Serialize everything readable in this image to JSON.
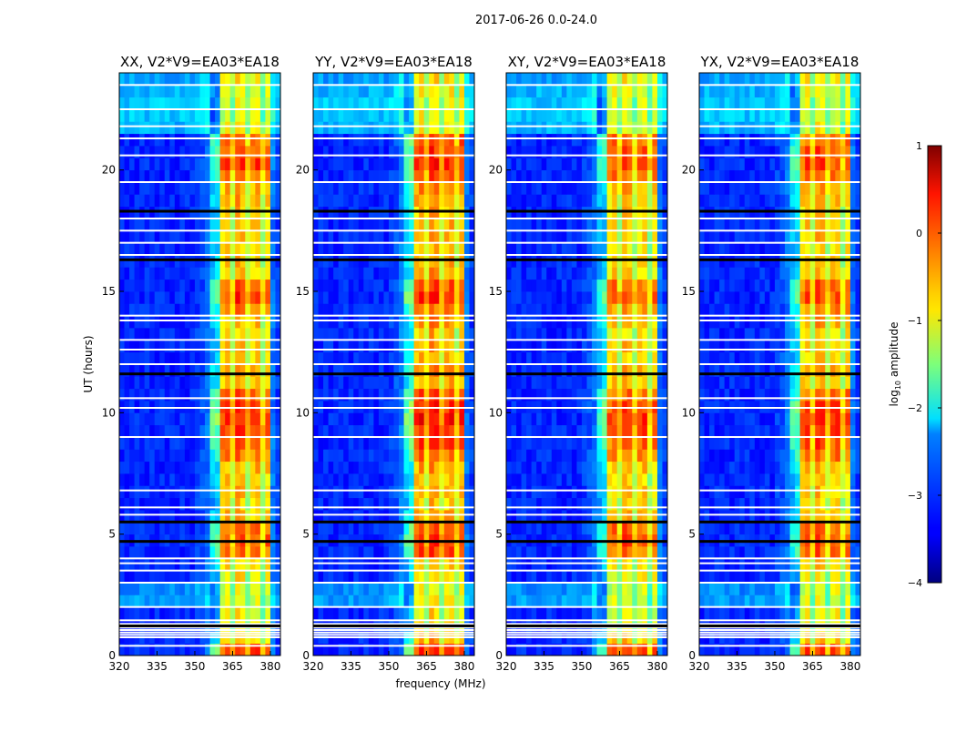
{
  "chart_data": {
    "type": "heatmap",
    "suptitle": "2017-06-26 0.0-24.0",
    "xlabel": "frequency (MHz)",
    "ylabel": "UT (hours)",
    "xlim": [
      320,
      384
    ],
    "ylim": [
      0,
      24
    ],
    "xticks": [
      320,
      335,
      350,
      365,
      380
    ],
    "yticks": [
      0,
      5,
      10,
      15,
      20
    ],
    "colorbar": {
      "label_main": "log",
      "label_sub": "10",
      "label_rest": " amplitude",
      "vmin": -4,
      "vmax": 1,
      "ticks": [
        1,
        0,
        -1,
        -2,
        -3,
        -4
      ],
      "tick_labels": [
        "1",
        "0",
        "−1",
        "−2",
        "−3",
        "−4"
      ],
      "colormap": "jet"
    },
    "freq_bin_mhz": 2,
    "time_bin_hours": 0.5,
    "freq_profile": [
      -3.2,
      -3.2,
      -3.2,
      -3.2,
      -3.2,
      -3.2,
      -3.2,
      -3.2,
      -3.2,
      -3.2,
      -3.2,
      -3.2,
      -3.2,
      -3.2,
      -3.2,
      -3.1,
      -3.0,
      -2.8,
      -2.2,
      -2.0,
      -0.5,
      -0.3,
      -0.9,
      -0.2,
      -0.3,
      -0.9,
      -0.4,
      -0.3,
      -1.0,
      -0.4,
      -2.8,
      -3.1
    ],
    "rfi_time_offset": [
      0.4,
      -0.3,
      -0.6,
      -0.6,
      -0.7,
      -0.7,
      -0.5,
      -0.4,
      0.2,
      0.3,
      0.2,
      -0.2,
      -0.4,
      -0.3,
      -0.3,
      -0.2,
      0.1,
      0.3,
      0.4,
      0.5,
      0.4,
      0.2,
      -0.2,
      -0.1,
      -0.3,
      -0.3,
      -0.4,
      -0.2,
      0.0,
      0.4,
      0.2,
      -0.3,
      -0.3,
      -0.4,
      -0.3,
      -0.3,
      -0.3,
      -0.2,
      -0.1,
      0.2,
      0.4,
      0.3,
      0.2,
      -0.6,
      -0.7,
      -0.7,
      -0.6,
      -0.5
    ],
    "bg_time_offset": [
      0,
      0,
      0,
      0,
      0.6,
      0.5,
      0,
      0,
      0,
      0,
      0,
      0,
      0,
      0,
      0,
      0,
      0,
      0,
      0,
      0,
      0,
      0,
      0,
      0,
      0,
      0,
      0,
      0,
      0,
      0,
      0,
      0,
      0,
      0,
      0,
      0,
      0,
      0,
      0,
      0,
      0,
      0,
      0,
      0.7,
      0.8,
      0.8,
      0.7,
      0.6
    ],
    "flagged_hours_white": [
      0.4,
      0.75,
      0.85,
      0.95,
      1.05,
      1.15,
      1.3,
      1.45,
      2.0,
      3.0,
      3.5,
      3.8,
      4.0,
      5.5,
      5.8,
      6.1,
      6.8,
      9.0,
      10.2,
      10.6,
      12.0,
      12.6,
      13.0,
      13.8,
      14.0,
      16.5,
      17.0,
      17.5,
      18.0,
      19.5,
      20.6,
      21.3,
      21.8,
      22.5,
      23.5
    ],
    "flagged_hours_black": [
      1.22,
      4.7,
      5.5,
      11.6,
      16.3,
      18.3
    ],
    "panels": [
      {
        "title": "XX, V2*V9=EA03*EA18",
        "gain": 0.0
      },
      {
        "title": "YY, V2*V9=EA03*EA18",
        "gain": 0.15
      },
      {
        "title": "XY, V2*V9=EA03*EA18",
        "gain": -0.05
      },
      {
        "title": "YX, V2*V9=EA03*EA18",
        "gain": 0.0
      }
    ]
  }
}
